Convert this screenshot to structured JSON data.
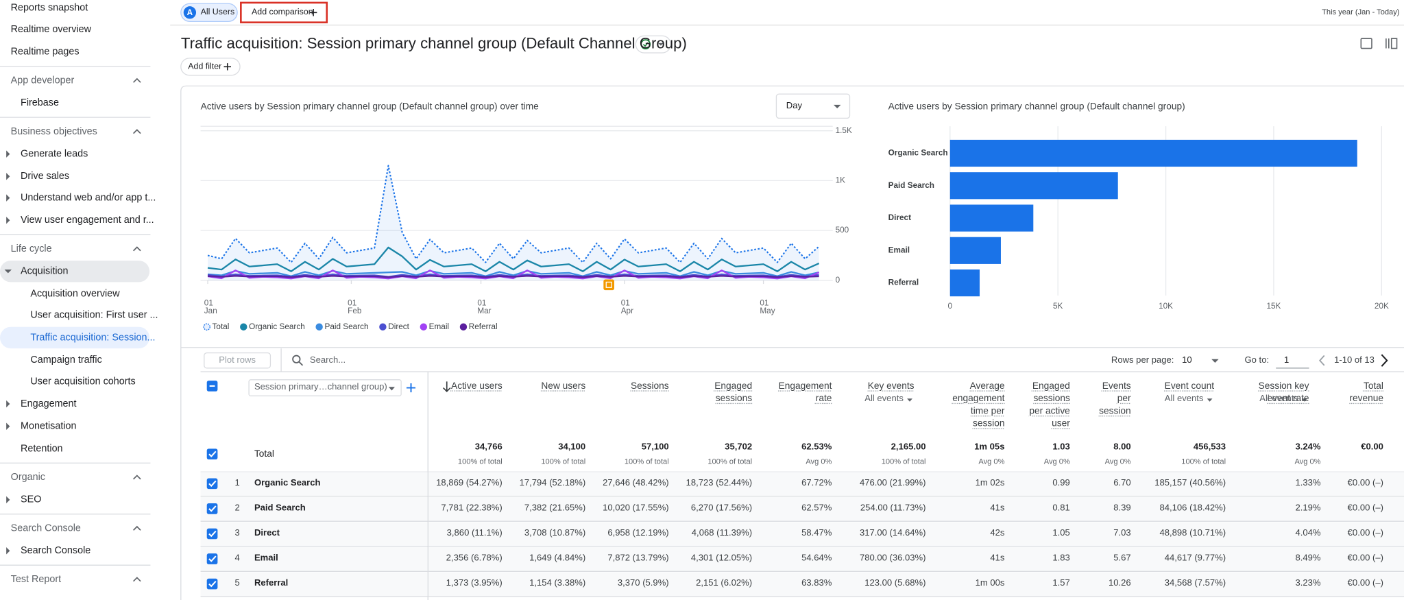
{
  "nav": [
    "Reports snapshot",
    "Realtime overview",
    "Realtime pages",
    "App developer",
    "Firebase",
    "Business objectives",
    "Generate leads",
    "Drive sales",
    "Understand web and/or app t...",
    "View user engagement and r...",
    "Life cycle",
    "Acquisition",
    "Acquisition overview",
    "User acquisition: First user ...",
    "Traffic acquisition: Session...",
    "Campaign traffic",
    "User acquisition cohorts",
    "Engagement",
    "Monetisation",
    "Retention",
    "Organic",
    "SEO",
    "Search Console",
    "Search Console",
    "Test Report"
  ],
  "header": {
    "avatar": "A",
    "segment": "All Users",
    "add_comparison": "Add comparison",
    "date_range": "This year (Jan - Today)",
    "title": "Traffic acquisition: Session primary channel group (Default Channel Group)",
    "add_filter": "Add filter"
  },
  "chart_data": [
    {
      "type": "line",
      "title": "Active users by Session primary channel group (Default channel group) over time",
      "granularity": "Day",
      "x": [
        1,
        4,
        7,
        10,
        13,
        16,
        19,
        22,
        25,
        28,
        31,
        34,
        37,
        40,
        43,
        46,
        49,
        52,
        55,
        58,
        61,
        64,
        67,
        70,
        73,
        76,
        79,
        82,
        85,
        88,
        91,
        94,
        97,
        100,
        103,
        106,
        109,
        112,
        115,
        118,
        121,
        124,
        127,
        130,
        133
      ],
      "xlim": [
        1,
        135
      ],
      "xticks": [
        {
          "value": 1,
          "label": "01 Jan"
        },
        {
          "value": 32,
          "label": "01 Feb"
        },
        {
          "value": 60,
          "label": "01 Mar"
        },
        {
          "value": 91,
          "label": "01 Apr"
        },
        {
          "value": 121,
          "label": "01 May"
        }
      ],
      "ylim": [
        0,
        1500
      ],
      "yticks": [
        0,
        500,
        {
          "value": 1000,
          "label": "1K"
        },
        {
          "value": 1500,
          "label": "1.5K"
        }
      ],
      "grid": true,
      "series": [
        {
          "name": "Total",
          "color": "#1a73e8",
          "dotted": true,
          "area": true,
          "values": [
            250,
            216,
            420,
            276,
            300,
            324,
            180,
            372,
            216,
            430,
            276,
            300,
            324,
            1150,
            480,
            216,
            410,
            276,
            300,
            324,
            180,
            372,
            216,
            400,
            276,
            300,
            324,
            180,
            372,
            216,
            415,
            276,
            300,
            324,
            180,
            372,
            216,
            420,
            276,
            300,
            324,
            180,
            372,
            216,
            340
          ]
        },
        {
          "name": "Organic Search",
          "color": "#1a86a8",
          "values": [
            125,
            108,
            210,
            138,
            150,
            162,
            90,
            186,
            108,
            215,
            138,
            150,
            162,
            330,
            240,
            108,
            205,
            138,
            150,
            162,
            90,
            186,
            108,
            200,
            138,
            150,
            162,
            90,
            186,
            108,
            208,
            138,
            150,
            162,
            90,
            186,
            108,
            210,
            138,
            150,
            162,
            90,
            186,
            108,
            170
          ]
        },
        {
          "name": "Paid Search",
          "color": "#3b8ce0",
          "values": [
            60,
            50,
            95,
            65,
            70,
            75,
            42,
            85,
            50,
            95,
            65,
            70,
            75,
            80,
            85,
            50,
            95,
            65,
            70,
            75,
            42,
            85,
            50,
            95,
            65,
            70,
            75,
            42,
            85,
            50,
            95,
            65,
            70,
            75,
            42,
            85,
            50,
            95,
            65,
            70,
            75,
            42,
            85,
            50,
            80
          ]
        },
        {
          "name": "Direct",
          "color": "#4b4fd0",
          "values": [
            55,
            38,
            60,
            45,
            48,
            50,
            35,
            55,
            38,
            60,
            45,
            48,
            50,
            35,
            55,
            38,
            60,
            45,
            48,
            50,
            35,
            55,
            38,
            60,
            45,
            48,
            50,
            35,
            55,
            38,
            60,
            45,
            48,
            50,
            35,
            55,
            38,
            60,
            45,
            48,
            50,
            35,
            55,
            38,
            55
          ]
        },
        {
          "name": "Email",
          "color": "#a142f4",
          "values": [
            40,
            20,
            100,
            25,
            35,
            30,
            18,
            40,
            20,
            100,
            25,
            35,
            30,
            18,
            40,
            20,
            100,
            25,
            35,
            30,
            18,
            40,
            20,
            100,
            25,
            35,
            30,
            18,
            40,
            20,
            100,
            25,
            35,
            30,
            18,
            40,
            20,
            100,
            25,
            35,
            30,
            18,
            40,
            20,
            80
          ]
        },
        {
          "name": "Referral",
          "color": "#5b1f9e",
          "values": [
            42,
            35,
            45,
            38,
            40,
            40,
            32,
            42,
            35,
            45,
            38,
            40,
            40,
            32,
            42,
            35,
            45,
            38,
            40,
            40,
            32,
            42,
            35,
            45,
            38,
            40,
            40,
            32,
            42,
            35,
            45,
            38,
            40,
            40,
            32,
            42,
            35,
            45,
            38,
            40,
            40,
            32,
            42,
            35,
            40
          ]
        }
      ]
    },
    {
      "type": "bar",
      "orientation": "horizontal",
      "title": "Active users by Session primary channel group (Default channel group)",
      "categories": [
        "Organic Search",
        "Paid Search",
        "Direct",
        "Email",
        "Referral"
      ],
      "values": [
        18869,
        7781,
        3860,
        2356,
        1373
      ],
      "color": "#1a73e8",
      "xlim": [
        0,
        20000
      ],
      "xticks": [
        0,
        {
          "value": 5000,
          "label": "5K"
        },
        {
          "value": 10000,
          "label": "10K"
        },
        {
          "value": 15000,
          "label": "15K"
        },
        {
          "value": 20000,
          "label": "20K"
        }
      ],
      "grid": true
    }
  ],
  "table": {
    "toolbar": {
      "plot_rows": "Plot rows",
      "search": "Search...",
      "rows_per_page": "Rows per page:",
      "rows_per_page_value": "10",
      "go_to": "Go to:",
      "go_to_value": "1",
      "range": "1-10 of 13"
    },
    "dimension": "Session primary…channel group)",
    "columns": [
      {
        "label": "Active users"
      },
      {
        "label": "New users"
      },
      {
        "label": "Sessions"
      },
      {
        "label": "Engaged sessions"
      },
      {
        "label": "Engagement rate"
      },
      {
        "label": "Key events",
        "filter": "All events"
      },
      {
        "label": "Average engagement time per session"
      },
      {
        "label": "Engaged sessions per active user"
      },
      {
        "label": "Events per session"
      },
      {
        "label": "Event count",
        "filter": "All events"
      },
      {
        "label": "Session key event rate",
        "filter": "All events"
      },
      {
        "label": "Total revenue"
      }
    ],
    "total": {
      "label": "Total",
      "values": [
        [
          "34,766",
          "100% of total"
        ],
        [
          "34,100",
          "100% of total"
        ],
        [
          "57,100",
          "100% of total"
        ],
        [
          "35,702",
          "100% of total"
        ],
        [
          "62.53%",
          "Avg 0%"
        ],
        [
          "2,165.00",
          "100% of total"
        ],
        [
          "1m 05s",
          "Avg 0%"
        ],
        [
          "1.03",
          "Avg 0%"
        ],
        [
          "8.00",
          "Avg 0%"
        ],
        [
          "456,533",
          "100% of total"
        ],
        [
          "3.24%",
          "Avg 0%"
        ],
        [
          "€0.00"
        ]
      ]
    },
    "rows": [
      {
        "index": "1",
        "name": "Organic Search",
        "values": [
          "18,869 (54.27%)",
          "17,794 (52.18%)",
          "27,646 (48.42%)",
          "18,723 (52.44%)",
          "67.72%",
          "476.00 (21.99%)",
          "1m 02s",
          "0.99",
          "6.70",
          "185,157 (40.56%)",
          "1.33%",
          "€0.00 (–)"
        ]
      },
      {
        "index": "2",
        "name": "Paid Search",
        "values": [
          "7,781 (22.38%)",
          "7,382 (21.65%)",
          "10,020 (17.55%)",
          "6,270 (17.56%)",
          "62.57%",
          "254.00 (11.73%)",
          "41s",
          "0.81",
          "8.39",
          "84,106 (18.42%)",
          "2.19%",
          "€0.00 (–)"
        ]
      },
      {
        "index": "3",
        "name": "Direct",
        "values": [
          "3,860 (11.1%)",
          "3,708 (10.87%)",
          "6,958 (12.19%)",
          "4,068 (11.39%)",
          "58.47%",
          "317.00 (14.64%)",
          "42s",
          "1.05",
          "7.03",
          "48,898 (10.71%)",
          "4.04%",
          "€0.00 (–)"
        ]
      },
      {
        "index": "4",
        "name": "Email",
        "values": [
          "2,356 (6.78%)",
          "1,649 (4.84%)",
          "7,872 (13.79%)",
          "4,301 (12.05%)",
          "54.64%",
          "780.00 (36.03%)",
          "41s",
          "1.83",
          "5.67",
          "44,617 (9.77%)",
          "8.49%",
          "€0.00 (–)"
        ]
      },
      {
        "index": "5",
        "name": "Referral",
        "values": [
          "1,373 (3.95%)",
          "1,154 (3.38%)",
          "3,370 (5.9%)",
          "2,151 (6.02%)",
          "63.83%",
          "123.00 (5.68%)",
          "1m 00s",
          "1.57",
          "10.26",
          "34,568 (7.57%)",
          "3.23%",
          "€0.00 (–)"
        ]
      }
    ]
  }
}
